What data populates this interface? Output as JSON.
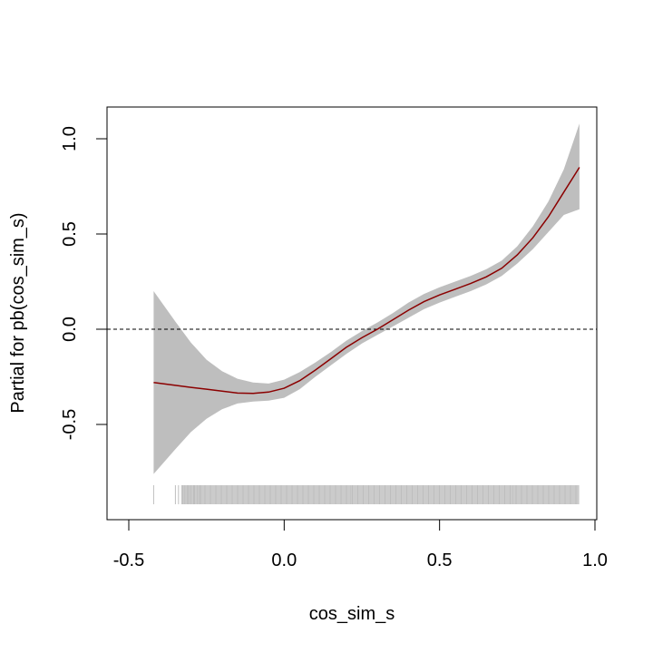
{
  "chart_data": {
    "type": "line",
    "title": "",
    "xlabel": "cos_sim_s",
    "ylabel": "Partial for pb(cos_sim_s)",
    "xlim": [
      -0.57,
      1.0
    ],
    "ylim": [
      -1.0,
      1.16
    ],
    "x_ticks": [
      -0.5,
      0.0,
      0.5,
      1.0
    ],
    "x_tick_labels": [
      "-0.5",
      "0.0",
      "0.5",
      "1.0"
    ],
    "y_ticks": [
      -0.5,
      0.0,
      0.5,
      1.0
    ],
    "y_tick_labels": [
      "-0.5",
      "0.0",
      "0.5",
      "1.0"
    ],
    "grid": false,
    "reference_line_y": 0.0,
    "colors": {
      "fit_line": "#8b0000",
      "confidence_band": "#bebebe",
      "rug": "#bebebe",
      "reference_line": "#000000"
    },
    "series": [
      {
        "x": [
          -0.42,
          -0.35,
          -0.3,
          -0.25,
          -0.2,
          -0.15,
          -0.1,
          -0.05,
          0.0,
          0.05,
          0.1,
          0.15,
          0.2,
          0.25,
          0.3,
          0.35,
          0.4,
          0.45,
          0.5,
          0.55,
          0.6,
          0.65,
          0.7,
          0.75,
          0.8,
          0.85,
          0.9,
          0.95
        ],
        "fit": [
          -0.28,
          -0.295,
          -0.305,
          -0.315,
          -0.325,
          -0.335,
          -0.337,
          -0.33,
          -0.31,
          -0.27,
          -0.215,
          -0.155,
          -0.095,
          -0.045,
          0.0,
          0.05,
          0.1,
          0.145,
          0.18,
          0.21,
          0.24,
          0.275,
          0.32,
          0.39,
          0.48,
          0.59,
          0.72,
          0.85
        ],
        "lower": [
          -0.76,
          -0.63,
          -0.54,
          -0.47,
          -0.42,
          -0.39,
          -0.38,
          -0.375,
          -0.36,
          -0.315,
          -0.25,
          -0.19,
          -0.13,
          -0.075,
          -0.03,
          0.015,
          0.06,
          0.105,
          0.14,
          0.17,
          0.2,
          0.235,
          0.28,
          0.345,
          0.42,
          0.51,
          0.6,
          0.63
        ],
        "upper": [
          0.2,
          0.04,
          -0.07,
          -0.16,
          -0.22,
          -0.26,
          -0.28,
          -0.285,
          -0.265,
          -0.225,
          -0.175,
          -0.12,
          -0.06,
          -0.01,
          0.035,
          0.085,
          0.14,
          0.185,
          0.22,
          0.25,
          0.28,
          0.315,
          0.36,
          0.435,
          0.54,
          0.67,
          0.84,
          1.08
        ]
      }
    ],
    "rug_range": [
      -0.33,
      0.95
    ],
    "rug_isolated": [
      -0.42,
      -0.35,
      -0.34,
      -0.32,
      -0.31,
      -0.3,
      -0.29,
      -0.28,
      -0.27
    ]
  }
}
